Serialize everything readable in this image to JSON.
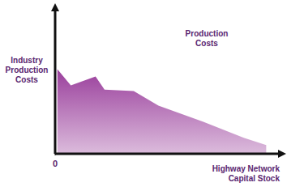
{
  "chart_data": {
    "type": "area",
    "y_label": "Industry Production Costs",
    "x_label": "Highway Network Capital Stock",
    "annotation": "Production Costs",
    "x": [
      1,
      7,
      18,
      22,
      35,
      46,
      66,
      84,
      94
    ],
    "values": [
      58,
      47,
      53,
      44,
      43,
      33,
      22,
      11,
      6
    ],
    "color": "#9a3f9c",
    "xlim": [
      0,
      100
    ],
    "ylim": [
      0,
      100
    ],
    "xticks": [
      0
    ],
    "yticks": [],
    "tick_labels": "x",
    "grid": false
  }
}
